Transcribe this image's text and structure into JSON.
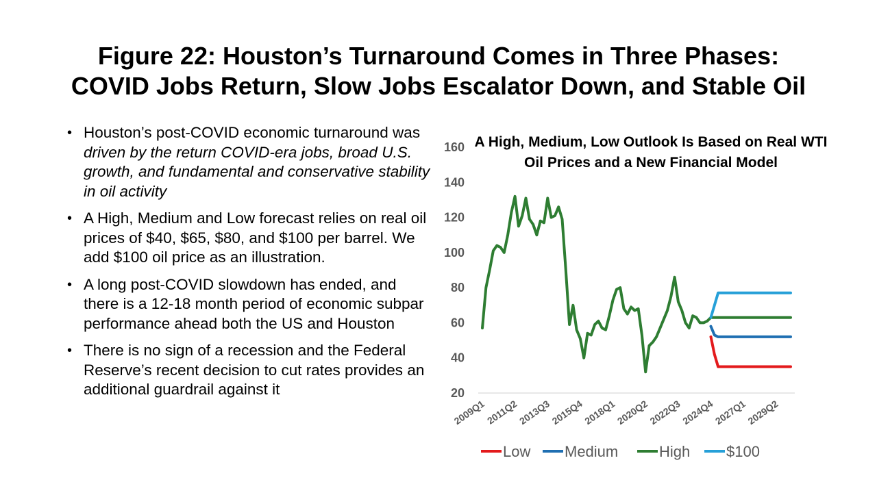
{
  "title": {
    "line1": "Figure 22: Houston’s Turnaround Comes in Three Phases:",
    "line2": "COVID Jobs Return, Slow Jobs Escalator Down, and Stable Oil"
  },
  "bullets": [
    {
      "lead": "Houston’s post-COVID economic turnaround was ",
      "emph": "driven by the return COVID-era jobs, broad U.S. growth, and fundamental and conservative stability in oil activity"
    },
    {
      "text": "A High, Medium and Low forecast relies on real oil prices of $40, $65, $80, and $100 per barrel. We add $100 oil price as an illustration."
    },
    {
      "text": "A long post-COVID slowdown has ended, and there is a 12-18 month period of economic subpar performance ahead both the US and Houston"
    },
    {
      "text": "There is no sign of a recession and the Federal Reserve’s recent decision to cut rates provides an additional guardrail against it"
    }
  ],
  "chart_data": {
    "type": "line",
    "title": "A High, Medium, Low Outlook Is Based on Real WTI Oil Prices and a New Financial Model",
    "xlabel": "",
    "ylabel": "",
    "ylim": [
      20,
      160
    ],
    "yticks": [
      20,
      40,
      60,
      80,
      100,
      120,
      140,
      160
    ],
    "x_tick_labels": [
      "2009Q1",
      "2011Q2",
      "2013Q3",
      "2015Q4",
      "2018Q1",
      "2020Q2",
      "2022Q3",
      "2024Q4",
      "2027Q1",
      "2029Q2"
    ],
    "x_tick_indices": [
      0,
      9,
      18,
      27,
      36,
      45,
      54,
      63,
      72,
      81
    ],
    "n_periods": 86,
    "grid": "horizontal baseline only",
    "legend_position": "bottom",
    "series": [
      {
        "name": "Low",
        "color": "#E31A1C",
        "start_index": 63,
        "values": [
          52,
          42,
          35,
          35,
          35,
          35,
          35,
          35,
          35,
          35,
          35,
          35,
          35,
          35,
          35,
          35,
          35,
          35,
          35,
          35,
          35,
          35,
          35
        ]
      },
      {
        "name": "Medium",
        "color": "#1F6FB2",
        "start_index": 63,
        "values": [
          58,
          53,
          52,
          52,
          52,
          52,
          52,
          52,
          52,
          52,
          52,
          52,
          52,
          52,
          52,
          52,
          52,
          52,
          52,
          52,
          52,
          52,
          52
        ]
      },
      {
        "name": "High",
        "color": "#2E7D32",
        "start_index": 0,
        "values": [
          57,
          80,
          90,
          101,
          104,
          103,
          100,
          110,
          123,
          132,
          115,
          121,
          131,
          119,
          116,
          110,
          118,
          117,
          131,
          120,
          121,
          126,
          119,
          90,
          59,
          70,
          56,
          51,
          40,
          54,
          53,
          59,
          61,
          57,
          56,
          64,
          73,
          79,
          80,
          68,
          65,
          69,
          67,
          68,
          53,
          32,
          47,
          49,
          52,
          57,
          62,
          67,
          75,
          86,
          72,
          67,
          60,
          57,
          64,
          63,
          60,
          60,
          61,
          63,
          63,
          63,
          63,
          63,
          63,
          63,
          63,
          63,
          63,
          63,
          63,
          63,
          63,
          63,
          63,
          63,
          63,
          63,
          63,
          63,
          63,
          63
        ]
      },
      {
        "name": "$100",
        "color": "#26A0D8",
        "start_index": 63,
        "values": [
          63,
          70,
          77,
          77,
          77,
          77,
          77,
          77,
          77,
          77,
          77,
          77,
          77,
          77,
          77,
          77,
          77,
          77,
          77,
          77,
          77,
          77,
          77
        ]
      }
    ]
  }
}
